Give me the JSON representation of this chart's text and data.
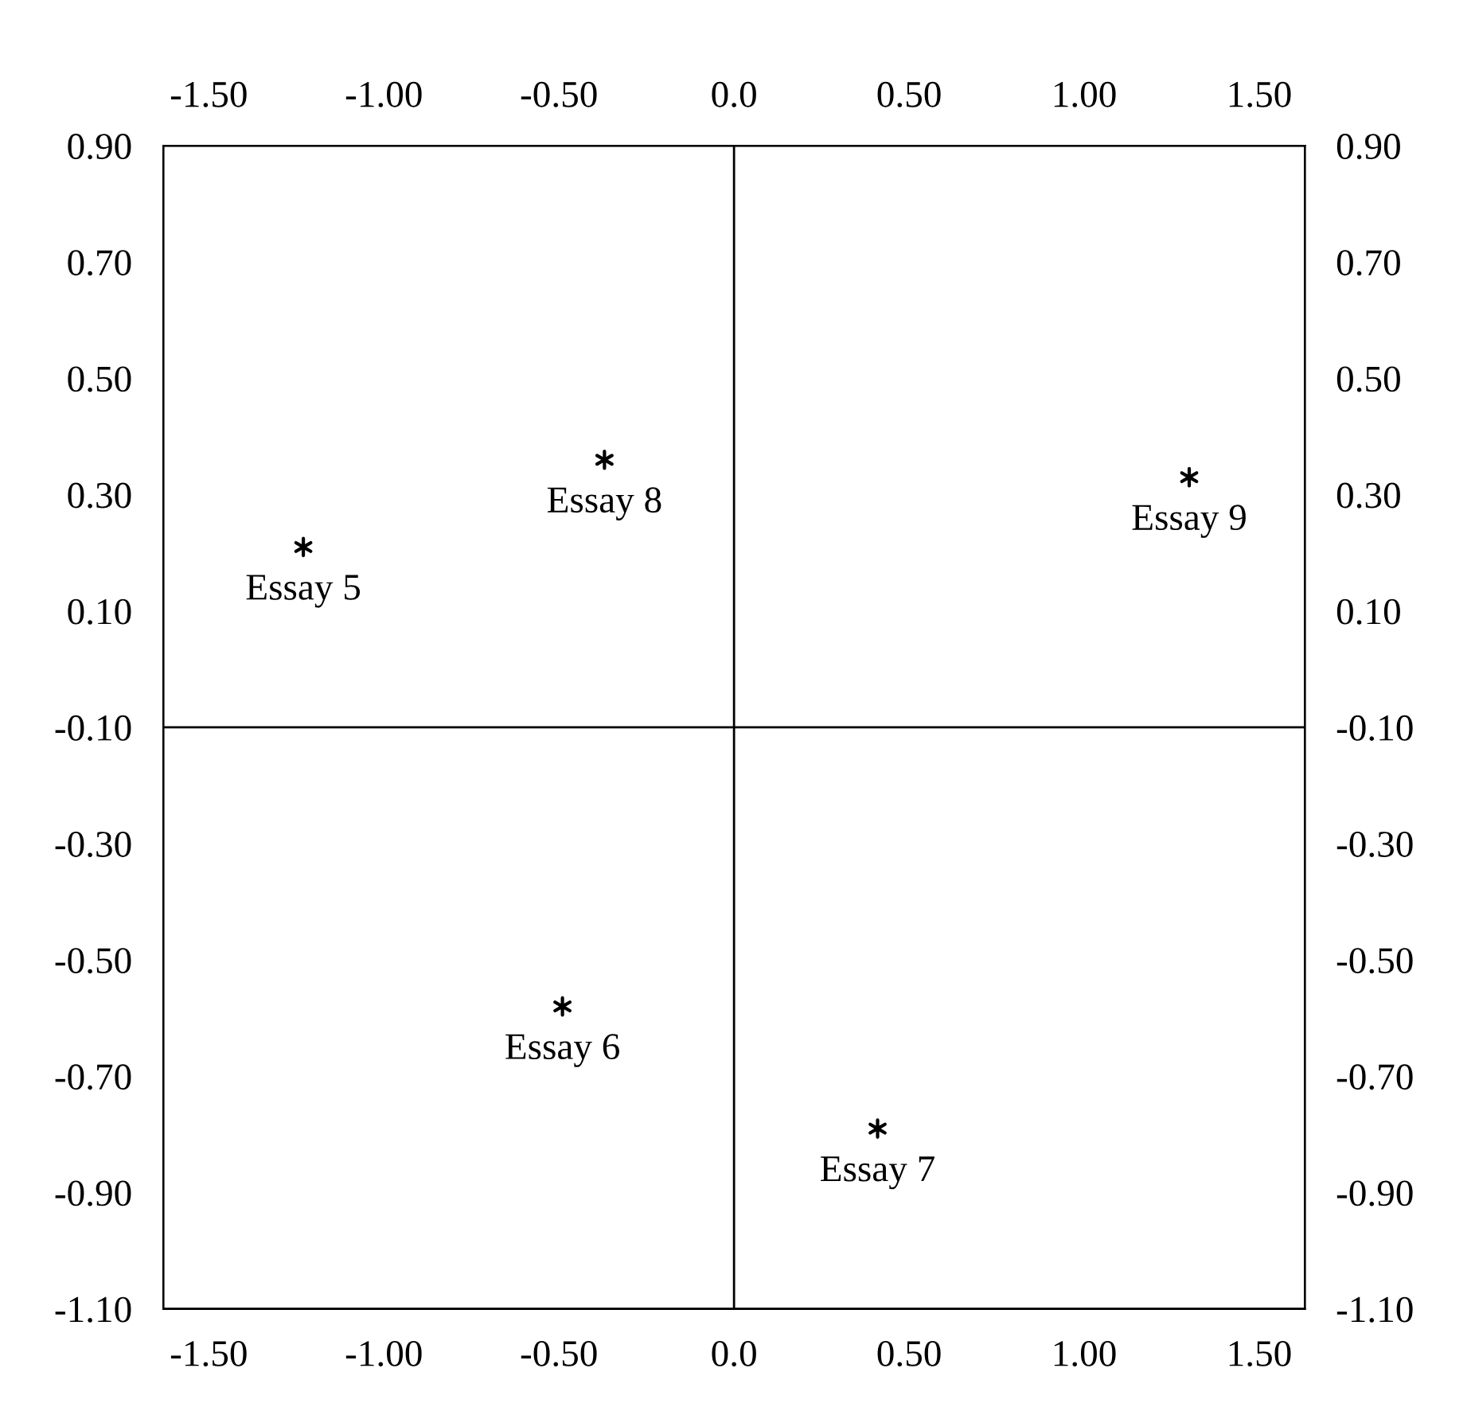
{
  "chart_data": {
    "type": "scatter",
    "x": [
      -1.23,
      -0.37,
      1.3,
      -0.49,
      0.41
    ],
    "values": [
      0.21,
      0.36,
      0.33,
      -0.58,
      -0.79
    ],
    "color": "#000000",
    "marker": "cross",
    "xlim": [
      -1.63,
      1.63
    ],
    "ylim": [
      -1.1,
      0.9
    ],
    "xticks": [
      {
        "value": -1.5,
        "label": "-1.50"
      },
      {
        "value": -1.0,
        "label": "-1.00"
      },
      {
        "value": -0.5,
        "label": "-0.50"
      },
      {
        "value": 0.0,
        "label": "0.0"
      },
      {
        "value": 0.5,
        "label": "0.50"
      },
      {
        "value": 1.0,
        "label": "1.00"
      },
      {
        "value": 1.5,
        "label": "1.50"
      }
    ],
    "x2lim": [
      -1.63,
      1.63
    ],
    "x2ticks": [
      {
        "value": -1.5,
        "label": "-1.50"
      },
      {
        "value": -1.0,
        "label": "-1.00"
      },
      {
        "value": -0.5,
        "label": "-0.50"
      },
      {
        "value": 0.0,
        "label": "0.0"
      },
      {
        "value": 0.5,
        "label": "0.50"
      },
      {
        "value": 1.0,
        "label": "1.00"
      },
      {
        "value": 1.5,
        "label": "1.50"
      }
    ],
    "yticks": [
      {
        "value": 0.9,
        "label": "0.90"
      },
      {
        "value": 0.7,
        "label": "0.70"
      },
      {
        "value": 0.5,
        "label": "0.50"
      },
      {
        "value": 0.3,
        "label": "0.30"
      },
      {
        "value": 0.1,
        "label": "0.10"
      },
      {
        "value": -0.1,
        "label": "-0.10"
      },
      {
        "value": -0.3,
        "label": "-0.30"
      },
      {
        "value": -0.5,
        "label": "-0.50"
      },
      {
        "value": -0.7,
        "label": "-0.70"
      },
      {
        "value": -0.9,
        "label": "-0.90"
      },
      {
        "value": -1.1,
        "label": "-1.10"
      }
    ],
    "y2lim": [
      -1.1,
      0.9
    ],
    "y2ticks": [
      {
        "value": 0.9,
        "label": "0.90"
      },
      {
        "value": 0.7,
        "label": "0.70"
      },
      {
        "value": 0.5,
        "label": "0.50"
      },
      {
        "value": 0.3,
        "label": "0.30"
      },
      {
        "value": 0.1,
        "label": "0.10"
      },
      {
        "value": -0.1,
        "label": "-0.10"
      },
      {
        "value": -0.3,
        "label": "-0.30"
      },
      {
        "value": -0.5,
        "label": "-0.50"
      },
      {
        "value": -0.7,
        "label": "-0.70"
      },
      {
        "value": -0.9,
        "label": "-0.90"
      },
      {
        "value": -1.1,
        "label": "-1.10"
      }
    ],
    "ref_lines": [
      {
        "axis": "x",
        "value": 0.0,
        "color": "#000000"
      },
      {
        "axis": "y",
        "value": -0.1,
        "color": "#000000"
      }
    ],
    "annotations": [
      {
        "text": "Essay 5",
        "x": -1.23,
        "y": 0.21
      },
      {
        "text": "Essay 8",
        "x": -0.37,
        "y": 0.36
      },
      {
        "text": "Essay 9",
        "x": 1.3,
        "y": 0.33
      },
      {
        "text": "Essay 6",
        "x": -0.49,
        "y": -0.58
      },
      {
        "text": "Essay 7",
        "x": 0.41,
        "y": -0.79
      }
    ],
    "grid": false,
    "legend": false
  }
}
